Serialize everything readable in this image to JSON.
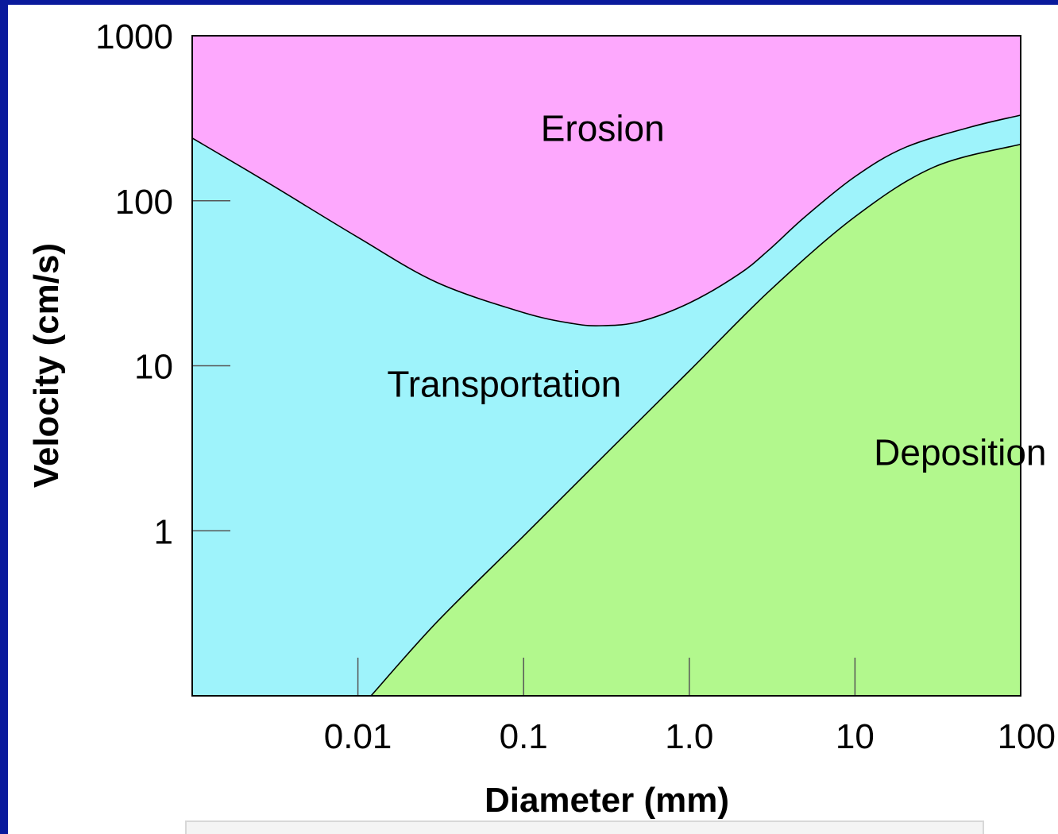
{
  "colors": {
    "frame": "#0a1a9c",
    "erosion": "#fda8fd",
    "transportation": "#9ef3fb",
    "deposition": "#b2f88d",
    "axis_line": "#000000",
    "tick_mark": "#555555"
  },
  "chart_data": {
    "type": "area",
    "title": "",
    "xlabel": "Diameter (mm)",
    "ylabel": "Velocity (cm/s)",
    "x_scale": "log",
    "y_scale": "log",
    "xlim": [
      0.001,
      100
    ],
    "ylim": [
      0.1,
      1000
    ],
    "x_ticks": [
      {
        "value": 0.01,
        "label": "0.01"
      },
      {
        "value": 0.1,
        "label": "0.1"
      },
      {
        "value": 1,
        "label": "1.0"
      },
      {
        "value": 10,
        "label": "10"
      },
      {
        "value": 100,
        "label": "100"
      }
    ],
    "y_ticks": [
      {
        "value": 1,
        "label": "1"
      },
      {
        "value": 10,
        "label": "10"
      },
      {
        "value": 100,
        "label": "100"
      },
      {
        "value": 1000,
        "label": "1000"
      }
    ],
    "grid": false,
    "regions": [
      {
        "label": "Erosion",
        "label_position": {
          "x": 0.3,
          "y": 230
        }
      },
      {
        "label": "Transportation",
        "label_position": {
          "x": 0.015,
          "y": 6.5
        }
      },
      {
        "label": "Deposition",
        "label_position": {
          "x": 13,
          "y": 2.5
        }
      }
    ],
    "erosion_curve": {
      "x": [
        0.001,
        0.003,
        0.01,
        0.03,
        0.1,
        0.2,
        0.3,
        0.5,
        1,
        2,
        3,
        5,
        10,
        20,
        50,
        100
      ],
      "y": [
        240,
        125,
        60,
        32,
        21,
        18,
        17.5,
        18.5,
        24,
        36,
        50,
        80,
        140,
        210,
        280,
        330
      ]
    },
    "deposition_curve": {
      "x": [
        0.012,
        0.03,
        0.1,
        0.3,
        1,
        3,
        10,
        30,
        100
      ],
      "y": [
        0.1,
        0.28,
        0.93,
        2.8,
        9.3,
        28,
        80,
        160,
        220
      ]
    }
  }
}
